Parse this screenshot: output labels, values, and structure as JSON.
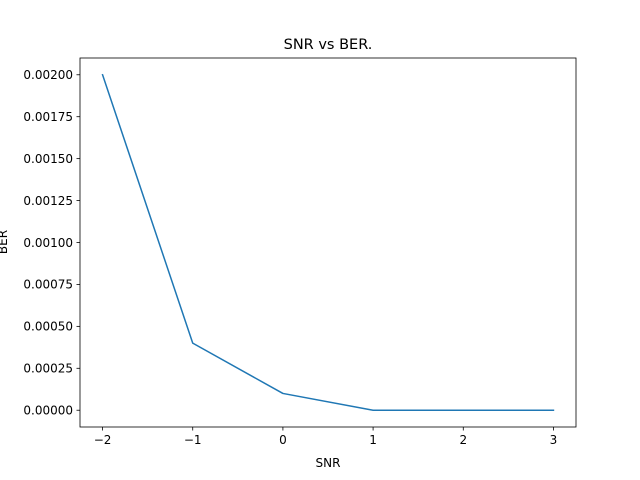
{
  "chart_data": {
    "type": "line",
    "title": "SNR vs BER.",
    "xlabel": "SNR",
    "ylabel": "BER",
    "xlim": [
      -2.25,
      3.25
    ],
    "ylim": [
      -0.0001,
      0.0021
    ],
    "xticks": [
      -2,
      -1,
      0,
      1,
      2,
      3
    ],
    "xtick_labels": [
      "−2",
      "−1",
      "0",
      "1",
      "2",
      "3"
    ],
    "yticks": [
      0,
      0.00025,
      0.0005,
      0.00075,
      0.001,
      0.00125,
      0.0015,
      0.00175,
      0.002
    ],
    "ytick_labels": [
      "0.00000",
      "0.00025",
      "0.00050",
      "0.00075",
      "0.00100",
      "0.00125",
      "0.00150",
      "0.00175",
      "0.00200"
    ],
    "grid": false,
    "series": [
      {
        "color": "#1f77b4",
        "x": [
          -2,
          -1,
          0,
          1,
          2,
          3
        ],
        "y": [
          0.002,
          0.0004,
          0.0001,
          0,
          0,
          0
        ]
      }
    ]
  }
}
